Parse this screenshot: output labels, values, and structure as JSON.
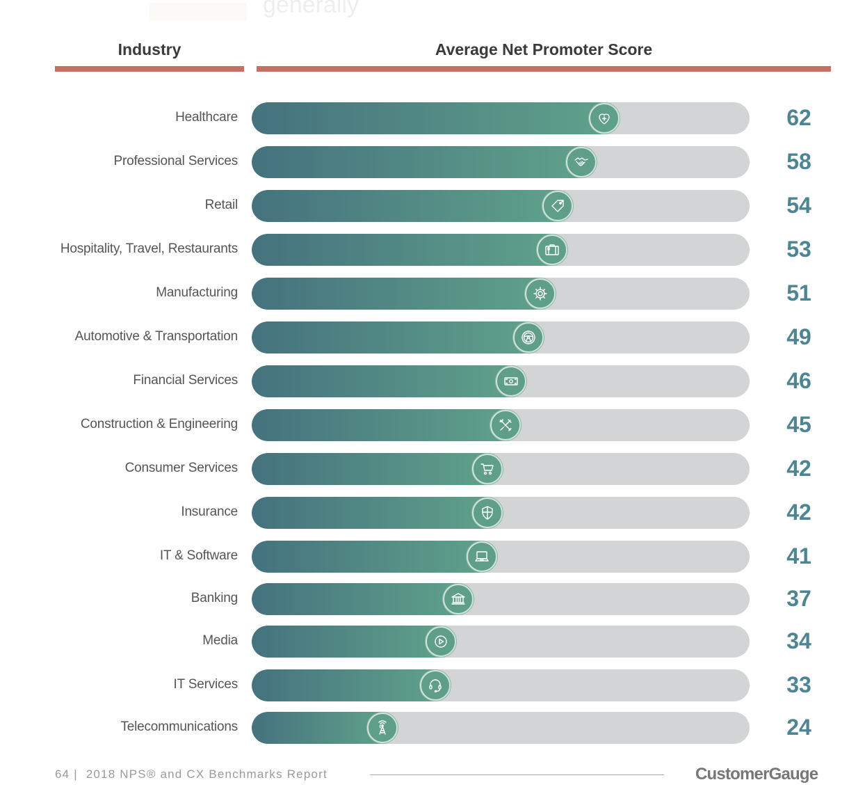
{
  "background_text": {
    "top": "generally"
  },
  "header": {
    "industry_label": "Industry",
    "score_label": "Average Net Promoter Score",
    "rule_color": "#c56e62"
  },
  "colors": {
    "fill_start": "#45727e",
    "fill_end": "#5fa08a",
    "track": "#d3d4d6",
    "value_text": "#4e8592"
  },
  "chart_data": {
    "type": "bar",
    "orientation": "horizontal",
    "title": "Average Net Promoter Score",
    "xlabel": "Average Net Promoter Score",
    "ylabel": "Industry",
    "xlim": [
      0,
      100
    ],
    "grid": false,
    "legend": "none",
    "categories": [
      "Healthcare",
      "Professional Services",
      "Retail",
      "Hospitality, Travel, Restaurants",
      "Manufacturing",
      "Automotive & Transportation",
      "Financial Services",
      "Construction & Engineering",
      "Consumer Services",
      "Insurance",
      "IT & Software",
      "Banking",
      "Media",
      "IT Services",
      "Telecommunications"
    ],
    "values": [
      62,
      58,
      54,
      53,
      51,
      49,
      46,
      45,
      42,
      42,
      41,
      37,
      34,
      33,
      24
    ],
    "icons": [
      "heart-plus-icon",
      "handshake-icon",
      "price-tag-icon",
      "suitcase-icon",
      "gear-icon",
      "steering-wheel-icon",
      "banknote-icon",
      "wrench-screwdriver-icon",
      "shopping-cart-icon",
      "shield-icon",
      "laptop-icon",
      "bank-building-icon",
      "play-icon",
      "headset-icon",
      "radio-tower-icon"
    ]
  },
  "footer": {
    "page_number": "64",
    "separator": "|",
    "report_title": "2018 NPS® and CX Benchmarks Report",
    "brand": "CustomerGauge"
  }
}
